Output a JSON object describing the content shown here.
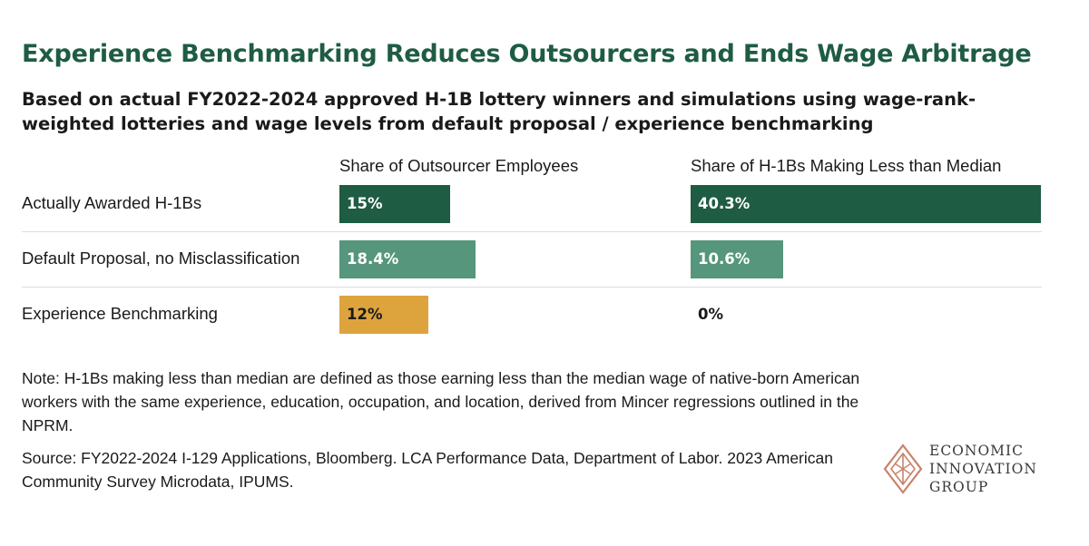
{
  "chart_data": {
    "type": "bar",
    "orientation": "horizontal",
    "title": "Experience Benchmarking Reduces Outsourcers and Ends Wage Arbitrage",
    "subtitle": "Based on actual FY2022-2024 approved H-1B lottery winners and simulations using wage-rank-weighted lotteries and wage levels from default proposal / experience benchmarking",
    "categories": [
      "Actually Awarded H-1Bs",
      "Default Proposal, no Misclassification",
      "Experience Benchmarking"
    ],
    "colors": [
      "#1e5c43",
      "#55967c",
      "#dda43e"
    ],
    "series": [
      {
        "name": "Share of Outsourcer Employees",
        "values": [
          15,
          18.4,
          12
        ],
        "labels": [
          "15%",
          "18.4%",
          "12%"
        ],
        "xlim": [
          0,
          47.5
        ]
      },
      {
        "name": "Share of H-1Bs Making Less than Median",
        "values": [
          40.3,
          10.6,
          0
        ],
        "labels": [
          "40.3%",
          "10.6%",
          "0%"
        ],
        "xlim": [
          0,
          40.3
        ]
      }
    ]
  },
  "note": "Note: H-1Bs making less than median are defined as those earning less than the median wage of native-born American workers with the same experience, education, occupation, and location, derived from Mincer regressions outlined in the NPRM.",
  "source": "Source: FY2022-2024 I-129 Applications, Bloomberg. LCA Performance Data, Department of Labor. 2023 American Community Survey Microdata, IPUMS.",
  "logo": {
    "lines": [
      "ECONOMIC",
      "INNOVATION",
      "GROUP"
    ],
    "color": "#c8836a"
  }
}
